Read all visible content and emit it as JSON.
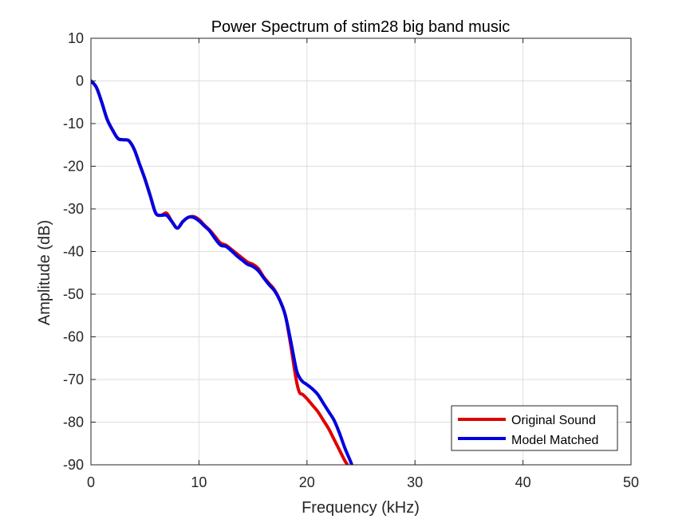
{
  "chart_data": {
    "type": "line",
    "title": "Power Spectrum of stim28 big band music",
    "xlabel": "Frequency (kHz)",
    "ylabel": "Amplitude (dB)",
    "xlim": [
      0,
      50
    ],
    "ylim": [
      -90,
      10
    ],
    "xticks": [
      0,
      10,
      20,
      30,
      40,
      50
    ],
    "yticks": [
      10,
      0,
      -10,
      -20,
      -30,
      -40,
      -50,
      -60,
      -70,
      -80,
      -90
    ],
    "xtick_labels": [
      "0",
      "10",
      "20",
      "30",
      "40",
      "50"
    ],
    "ytick_labels": [
      "10",
      "0",
      "-10",
      "-20",
      "-30",
      "-40",
      "-50",
      "-60",
      "-70",
      "-80",
      "-90"
    ],
    "grid": true,
    "legend_position": "bottom-right",
    "series": [
      {
        "name": "Original Sound",
        "color": "#e00000",
        "x": [
          0,
          0.5,
          1,
          1.5,
          2,
          2.5,
          3,
          3.5,
          4,
          4.5,
          5,
          5.5,
          6,
          6.5,
          7,
          7.5,
          8,
          8.5,
          9,
          9.5,
          10,
          10.5,
          11,
          11.5,
          12,
          12.5,
          13,
          13.5,
          14,
          14.5,
          15,
          15.5,
          16,
          16.5,
          17,
          17.5,
          18,
          18.5,
          19,
          19.3,
          19.6,
          20,
          20.5,
          21,
          21.5,
          22,
          22.5,
          23,
          23.5,
          24
        ],
        "y": [
          0,
          -1.5,
          -5,
          -9,
          -11.5,
          -13.5,
          -13.8,
          -14,
          -16,
          -19.5,
          -23,
          -27,
          -31,
          -31.5,
          -31,
          -33,
          -34.5,
          -33,
          -32,
          -31.8,
          -32.5,
          -33.8,
          -35,
          -36.5,
          -38,
          -38.5,
          -39.5,
          -40.5,
          -41.5,
          -42.5,
          -43,
          -44,
          -46,
          -47.5,
          -49,
          -51.5,
          -55,
          -62,
          -70,
          -73,
          -73.5,
          -74.5,
          -76,
          -77.5,
          -79.5,
          -81.5,
          -84,
          -86.5,
          -89,
          -91
        ]
      },
      {
        "name": "Model Matched",
        "color": "#0000e0",
        "x": [
          0,
          0.5,
          1,
          1.5,
          2,
          2.5,
          3,
          3.5,
          4,
          4.5,
          5,
          5.5,
          6,
          6.5,
          7,
          7.5,
          8,
          8.5,
          9,
          9.5,
          10,
          10.5,
          11,
          11.5,
          12,
          12.5,
          13,
          13.5,
          14,
          14.5,
          15,
          15.5,
          16,
          16.5,
          17,
          17.5,
          18,
          18.5,
          19,
          19.3,
          19.6,
          20,
          20.5,
          21,
          21.5,
          22,
          22.5,
          23,
          23.5,
          24,
          24.3
        ],
        "y": [
          0,
          -1.5,
          -5,
          -9,
          -11.5,
          -13.5,
          -13.8,
          -14,
          -16,
          -19.5,
          -23,
          -27,
          -31,
          -31.5,
          -31.5,
          -33,
          -34.5,
          -33,
          -32,
          -32,
          -32.8,
          -34,
          -35.2,
          -37,
          -38.5,
          -38.8,
          -39.8,
          -41,
          -42,
          -43,
          -43.5,
          -44.5,
          -46.2,
          -47.8,
          -49.2,
          -51.5,
          -55,
          -61,
          -67.5,
          -69.5,
          -70.5,
          -71.2,
          -72.2,
          -73.5,
          -75.5,
          -77.5,
          -79.5,
          -82.5,
          -86,
          -89,
          -91
        ]
      }
    ]
  }
}
